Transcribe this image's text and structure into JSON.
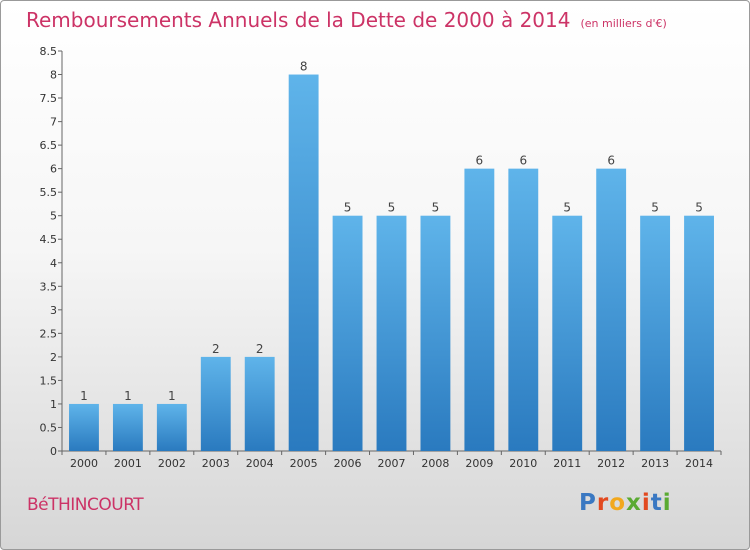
{
  "title": "Remboursements Annuels de la Dette de 2000 à 2014",
  "unit_note": "(en milliers d'€)",
  "commune": "BéTHINCOURT",
  "logo": {
    "text": "Proxiti",
    "letter_colors": [
      "#3a78c2",
      "#e2491f",
      "#f2a81d",
      "#5aaa32",
      "#e2491f",
      "#3a78c2",
      "#5aaa32"
    ]
  },
  "colors": {
    "bar_top": "#5fb4ea",
    "bar_bottom": "#2a7abf",
    "title": "#cc3366"
  },
  "chart_data": {
    "type": "bar",
    "categories": [
      "2000",
      "2001",
      "2002",
      "2003",
      "2004",
      "2005",
      "2006",
      "2007",
      "2008",
      "2009",
      "2010",
      "2011",
      "2012",
      "2013",
      "2014"
    ],
    "values": [
      1,
      1,
      1,
      2,
      2,
      8,
      5,
      5,
      5,
      6,
      6,
      5,
      6,
      5,
      5
    ],
    "value_labels": [
      "1",
      "1",
      "1",
      "2",
      "2",
      "8",
      "5",
      "5",
      "5",
      "6",
      "6",
      "5",
      "6",
      "5",
      "5"
    ],
    "yticks": [
      "0",
      "0.5",
      "1",
      "1.5",
      "2",
      "2.5",
      "3",
      "3.5",
      "4",
      "4.5",
      "5",
      "5.5",
      "6",
      "6.5",
      "7",
      "7.5",
      "8",
      "8.5"
    ],
    "ylim": [
      0,
      8.5
    ],
    "xlabel": "",
    "ylabel": "",
    "grid": false,
    "legend": "none"
  }
}
